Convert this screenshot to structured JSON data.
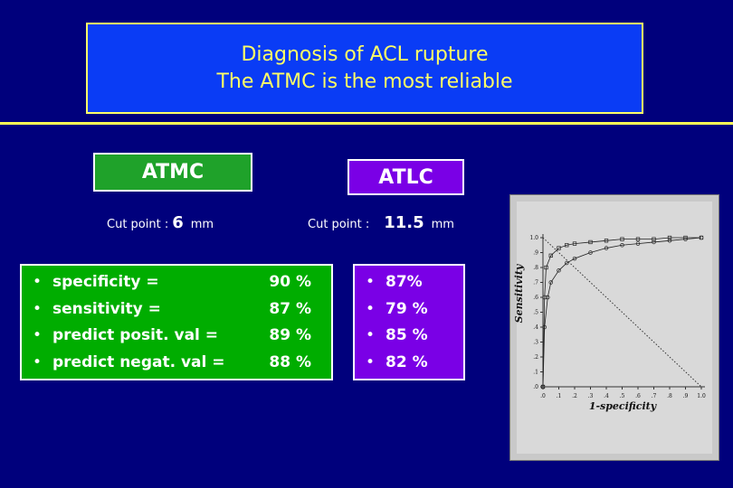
{
  "header": {
    "title_lines": [
      "Diagnosis of ACL rupture",
      "The ATMC is the most reliable"
    ]
  },
  "tests": [
    {
      "name": "ATMC",
      "cut_point_label": "Cut point :",
      "cut_point_value": "6",
      "cut_point_unit": "mm",
      "rows": [
        {
          "label": "specificity =",
          "value": "90 %"
        },
        {
          "label": "sensitivity =",
          "value": "87 %"
        },
        {
          "label": "predict posit. val =",
          "value": "89 %"
        },
        {
          "label": "predict negat. val =",
          "value": "88 %"
        }
      ]
    },
    {
      "name": "ATLC",
      "cut_point_label": "Cut point :",
      "cut_point_value": "11.5",
      "cut_point_unit": "mm",
      "rows": [
        {
          "value": "87%"
        },
        {
          "value": "79 %"
        },
        {
          "value": "85 %"
        },
        {
          "value": "82 %"
        }
      ]
    }
  ],
  "chart_data": {
    "type": "line",
    "xlabel": "1-specificity",
    "ylabel": "Sensitivity",
    "xlim": [
      0,
      1
    ],
    "ylim": [
      0,
      1
    ],
    "xticks": [
      {
        "value": 0,
        "label": ".0"
      },
      {
        "value": 0.1,
        "label": ".1"
      },
      {
        "value": 0.2,
        "label": ".2"
      },
      {
        "value": 0.3,
        "label": ".3"
      },
      {
        "value": 0.4,
        "label": ".4"
      },
      {
        "value": 0.5,
        "label": ".5"
      },
      {
        "value": 0.6,
        "label": ".6"
      },
      {
        "value": 0.7,
        "label": ".7"
      },
      {
        "value": 0.8,
        "label": ".8"
      },
      {
        "value": 0.9,
        "label": ".9"
      },
      {
        "value": 1,
        "label": "1.0"
      }
    ],
    "yticks": [
      {
        "value": 0,
        "label": ".0"
      },
      {
        "value": 0.1,
        "label": ".1"
      },
      {
        "value": 0.2,
        "label": ".2"
      },
      {
        "value": 0.3,
        "label": ".3"
      },
      {
        "value": 0.4,
        "label": ".4"
      },
      {
        "value": 0.5,
        "label": ".5"
      },
      {
        "value": 0.6,
        "label": ".6"
      },
      {
        "value": 0.7,
        "label": ".7"
      },
      {
        "value": 0.8,
        "label": ".8"
      },
      {
        "value": 0.9,
        "label": ".9"
      },
      {
        "value": 1,
        "label": "1.0"
      }
    ],
    "series": [
      {
        "color": "#222222",
        "marker": "square",
        "x": [
          0,
          0.01,
          0.02,
          0.05,
          0.1,
          0.15,
          0.2,
          0.3,
          0.4,
          0.5,
          0.6,
          0.7,
          0.8,
          0.9,
          1
        ],
        "values": [
          0,
          0.6,
          0.8,
          0.88,
          0.93,
          0.95,
          0.96,
          0.97,
          0.98,
          0.99,
          0.99,
          0.99,
          1,
          1,
          1
        ]
      },
      {
        "color": "#222222",
        "marker": "circle",
        "x": [
          0,
          0.01,
          0.03,
          0.05,
          0.1,
          0.15,
          0.2,
          0.3,
          0.4,
          0.5,
          0.6,
          0.7,
          0.8,
          0.9,
          1
        ],
        "values": [
          0,
          0.4,
          0.6,
          0.7,
          0.78,
          0.83,
          0.86,
          0.9,
          0.93,
          0.95,
          0.96,
          0.97,
          0.98,
          0.99,
          1
        ]
      }
    ]
  }
}
